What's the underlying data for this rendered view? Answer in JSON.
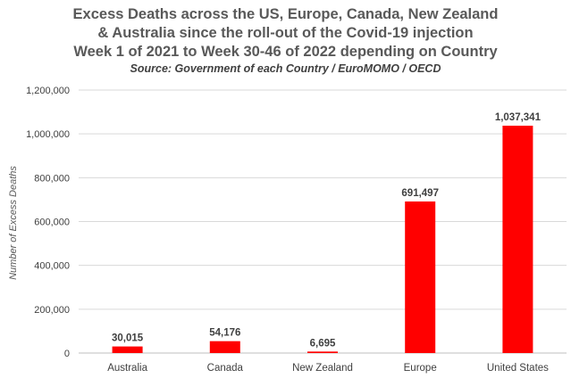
{
  "chart_data": {
    "type": "bar",
    "title_lines": [
      "Excess Deaths across the US, Europe, Canada, New Zealand",
      "& Australia since the roll-out of the Covid-19 injection",
      "Week 1 of 2021 to Week 30-46 of 2022 depending on Country"
    ],
    "subtitle": "Source: Government of each Country / EuroMOMO / OECD",
    "ylabel": "Number of Excess Deaths",
    "xlabel": "",
    "categories": [
      "Australia",
      "Canada",
      "New Zealand",
      "Europe",
      "United States"
    ],
    "values": [
      30015,
      54176,
      6695,
      691497,
      1037341
    ],
    "data_labels": [
      "30,015",
      "54,176",
      "6,695",
      "691,497",
      "1,037,341"
    ],
    "ylim": [
      0,
      1200000
    ],
    "yticks": [
      0,
      200000,
      400000,
      600000,
      800000,
      1000000,
      1200000
    ],
    "ytick_labels": [
      "0",
      "200,000",
      "400,000",
      "600,000",
      "800,000",
      "1,000,000",
      "1,200,000"
    ],
    "grid": true,
    "bar_color": "#ff0000",
    "grid_color": "#d9d9d9"
  }
}
